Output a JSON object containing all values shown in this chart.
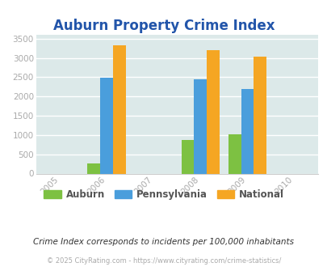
{
  "title": "Auburn Property Crime Index",
  "title_color": "#2255aa",
  "subtitle": "Crime Index corresponds to incidents per 100,000 inhabitants",
  "footer": "© 2025 CityRating.com - https://www.cityrating.com/crime-statistics/",
  "years": [
    2006,
    2008,
    2009
  ],
  "auburn": [
    270,
    880,
    1020
  ],
  "pennsylvania": [
    2480,
    2440,
    2200
  ],
  "national": [
    3320,
    3200,
    3040
  ],
  "bar_colors": {
    "auburn": "#7dc142",
    "pennsylvania": "#4a9edc",
    "national": "#f5a623"
  },
  "xlim": [
    2004.5,
    2010.5
  ],
  "ylim": [
    0,
    3600
  ],
  "yticks": [
    0,
    500,
    1000,
    1500,
    2000,
    2500,
    3000,
    3500
  ],
  "xticks": [
    2005,
    2006,
    2007,
    2008,
    2009,
    2010
  ],
  "bar_width": 0.27,
  "background_color": "#dce9e9",
  "figure_background": "#ffffff",
  "grid_color": "#ffffff",
  "tick_label_color": "#aaaaaa",
  "legend_labels": [
    "Auburn",
    "Pennsylvania",
    "National"
  ],
  "legend_text_color": "#555555",
  "subtitle_color": "#333333",
  "footer_color": "#aaaaaa",
  "title_fontsize": 12,
  "tick_fontsize": 7.5,
  "legend_fontsize": 8.5,
  "subtitle_fontsize": 7.5,
  "footer_fontsize": 6
}
